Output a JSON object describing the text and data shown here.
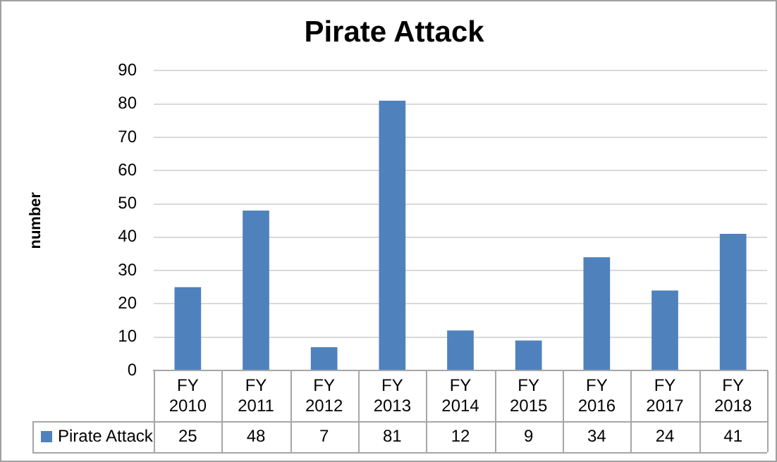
{
  "chart_data": {
    "type": "bar",
    "title": "Pirate Attack",
    "ylabel": "number",
    "categories": [
      "FY 2010",
      "FY 2011",
      "FY 2012",
      "FY 2013",
      "FY 2014",
      "FY 2015",
      "FY 2016",
      "FY 2017",
      "FY 2018"
    ],
    "series": [
      {
        "name": "Pirate Attack",
        "color": "#4f81bd",
        "values": [
          25,
          48,
          7,
          81,
          12,
          9,
          34,
          24,
          41
        ]
      }
    ],
    "ylim": [
      0,
      90
    ],
    "yticks": [
      0,
      10,
      20,
      30,
      40,
      50,
      60,
      70,
      80,
      90
    ],
    "grid": "y",
    "legend": "bottom",
    "data_labels": true
  }
}
